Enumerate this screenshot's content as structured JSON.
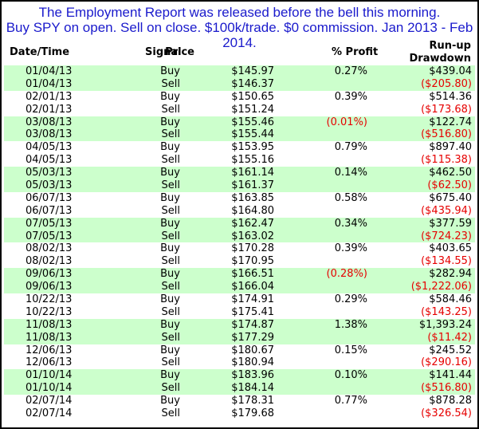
{
  "title_lines": [
    "The Employment Report was released before the bell this morning.",
    "Buy SPY on open. Sell on close. $100k/trade. $0 commission. Jan 2013 - Feb 2014."
  ],
  "headers": {
    "date": "Date/Time",
    "signal": "Signal",
    "price": "Price",
    "profit": "% Profit",
    "runup": "Run-up",
    "drawdown": "Drawdown"
  },
  "rows": [
    {
      "date": "01/04/13",
      "signal": "Buy",
      "price": "$145.97",
      "pct": "0.27%",
      "pct_neg": false,
      "run": "$439.04",
      "run_neg": false,
      "shade": true
    },
    {
      "date": "01/04/13",
      "signal": "Sell",
      "price": "$146.37",
      "pct": "",
      "pct_neg": false,
      "run": "($205.80)",
      "run_neg": true,
      "shade": true
    },
    {
      "date": "02/01/13",
      "signal": "Buy",
      "price": "$150.65",
      "pct": "0.39%",
      "pct_neg": false,
      "run": "$514.36",
      "run_neg": false,
      "shade": false
    },
    {
      "date": "02/01/13",
      "signal": "Sell",
      "price": "$151.24",
      "pct": "",
      "pct_neg": false,
      "run": "($173.68)",
      "run_neg": true,
      "shade": false
    },
    {
      "date": "03/08/13",
      "signal": "Buy",
      "price": "$155.46",
      "pct": "(0.01%)",
      "pct_neg": true,
      "run": "$122.74",
      "run_neg": false,
      "shade": true
    },
    {
      "date": "03/08/13",
      "signal": "Sell",
      "price": "$155.44",
      "pct": "",
      "pct_neg": false,
      "run": "($516.80)",
      "run_neg": true,
      "shade": true
    },
    {
      "date": "04/05/13",
      "signal": "Buy",
      "price": "$153.95",
      "pct": "0.79%",
      "pct_neg": false,
      "run": "$897.40",
      "run_neg": false,
      "shade": false
    },
    {
      "date": "04/05/13",
      "signal": "Sell",
      "price": "$155.16",
      "pct": "",
      "pct_neg": false,
      "run": "($115.38)",
      "run_neg": true,
      "shade": false
    },
    {
      "date": "05/03/13",
      "signal": "Buy",
      "price": "$161.14",
      "pct": "0.14%",
      "pct_neg": false,
      "run": "$462.50",
      "run_neg": false,
      "shade": true
    },
    {
      "date": "05/03/13",
      "signal": "Sell",
      "price": "$161.37",
      "pct": "",
      "pct_neg": false,
      "run": "($62.50)",
      "run_neg": true,
      "shade": true
    },
    {
      "date": "06/07/13",
      "signal": "Buy",
      "price": "$163.85",
      "pct": "0.58%",
      "pct_neg": false,
      "run": "$675.40",
      "run_neg": false,
      "shade": false
    },
    {
      "date": "06/07/13",
      "signal": "Sell",
      "price": "$164.80",
      "pct": "",
      "pct_neg": false,
      "run": "($435.94)",
      "run_neg": true,
      "shade": false
    },
    {
      "date": "07/05/13",
      "signal": "Buy",
      "price": "$162.47",
      "pct": "0.34%",
      "pct_neg": false,
      "run": "$377.59",
      "run_neg": false,
      "shade": true
    },
    {
      "date": "07/05/13",
      "signal": "Sell",
      "price": "$163.02",
      "pct": "",
      "pct_neg": false,
      "run": "($724.23)",
      "run_neg": true,
      "shade": true
    },
    {
      "date": "08/02/13",
      "signal": "Buy",
      "price": "$170.28",
      "pct": "0.39%",
      "pct_neg": false,
      "run": "$403.65",
      "run_neg": false,
      "shade": false
    },
    {
      "date": "08/02/13",
      "signal": "Sell",
      "price": "$170.95",
      "pct": "",
      "pct_neg": false,
      "run": "($134.55)",
      "run_neg": true,
      "shade": false
    },
    {
      "date": "09/06/13",
      "signal": "Buy",
      "price": "$166.51",
      "pct": "(0.28%)",
      "pct_neg": true,
      "run": "$282.94",
      "run_neg": false,
      "shade": true
    },
    {
      "date": "09/06/13",
      "signal": "Sell",
      "price": "$166.04",
      "pct": "",
      "pct_neg": false,
      "run": "($1,222.06)",
      "run_neg": true,
      "shade": true
    },
    {
      "date": "10/22/13",
      "signal": "Buy",
      "price": "$174.91",
      "pct": "0.29%",
      "pct_neg": false,
      "run": "$584.46",
      "run_neg": false,
      "shade": false
    },
    {
      "date": "10/22/13",
      "signal": "Sell",
      "price": "$175.41",
      "pct": "",
      "pct_neg": false,
      "run": "($143.25)",
      "run_neg": true,
      "shade": false
    },
    {
      "date": "11/08/13",
      "signal": "Buy",
      "price": "$174.87",
      "pct": "1.38%",
      "pct_neg": false,
      "run": "$1,393.24",
      "run_neg": false,
      "shade": true
    },
    {
      "date": "11/08/13",
      "signal": "Sell",
      "price": "$177.29",
      "pct": "",
      "pct_neg": false,
      "run": "($11.42)",
      "run_neg": true,
      "shade": true
    },
    {
      "date": "12/06/13",
      "signal": "Buy",
      "price": "$180.67",
      "pct": "0.15%",
      "pct_neg": false,
      "run": "$245.52",
      "run_neg": false,
      "shade": false
    },
    {
      "date": "12/06/13",
      "signal": "Sell",
      "price": "$180.94",
      "pct": "",
      "pct_neg": false,
      "run": "($290.16)",
      "run_neg": true,
      "shade": false
    },
    {
      "date": "01/10/14",
      "signal": "Buy",
      "price": "$183.96",
      "pct": "0.10%",
      "pct_neg": false,
      "run": "$141.44",
      "run_neg": false,
      "shade": true
    },
    {
      "date": "01/10/14",
      "signal": "Sell",
      "price": "$184.14",
      "pct": "",
      "pct_neg": false,
      "run": "($516.80)",
      "run_neg": true,
      "shade": true
    },
    {
      "date": "02/07/14",
      "signal": "Buy",
      "price": "$178.31",
      "pct": "0.77%",
      "pct_neg": false,
      "run": "$878.28",
      "run_neg": false,
      "shade": false
    },
    {
      "date": "02/07/14",
      "signal": "Sell",
      "price": "$179.68",
      "pct": "",
      "pct_neg": false,
      "run": "($326.54)",
      "run_neg": true,
      "shade": false
    }
  ],
  "colors": {
    "title": "#1a1acc",
    "shade": "#ccffcc",
    "negative": "#e60000"
  }
}
